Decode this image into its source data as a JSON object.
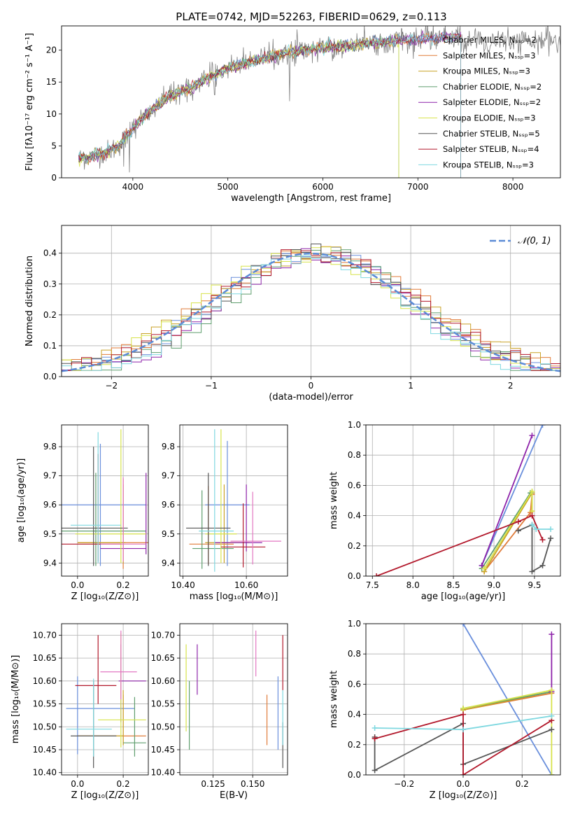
{
  "figure": {
    "title": "PLATE=0742, MJD=52263, FIBERID=0629, z=0.113"
  },
  "chart_data": [
    {
      "id": "spectrum",
      "type": "line",
      "xlabel": "wavelength [Angstrom, rest frame]",
      "ylabel": "Flux [fλ10⁻¹⁷ erg cm⁻² s⁻¹ A⁻¹]",
      "xlim": [
        3250,
        8500
      ],
      "ylim": [
        0,
        23.8
      ],
      "xticks": [
        4000,
        5000,
        6000,
        7000,
        8000
      ],
      "yticks": [
        0,
        5,
        10,
        15,
        20
      ],
      "grid": false,
      "legend_position": "right",
      "legend": [
        {
          "label": "Chabrier MILES, Nₛₛₚ=2",
          "color": "#6a8fdc"
        },
        {
          "label": "Salpeter MILES, Nₛₛₚ=3",
          "color": "#e07b39"
        },
        {
          "label": "Kroupa MILES, Nₛₛₚ=3",
          "color": "#c9a227"
        },
        {
          "label": "Chabrier ELODIE, Nₛₛₚ=2",
          "color": "#5f9e6e"
        },
        {
          "label": "Salpeter ELODIE, Nₛₛₚ=2",
          "color": "#8e24aa"
        },
        {
          "label": "Kroupa ELODIE, Nₛₛₚ=3",
          "color": "#d7e34b"
        },
        {
          "label": "Chabrier STELIB, Nₛₛₚ=5",
          "color": "#555555"
        },
        {
          "label": "Salpeter STELIB, Nₛₛₚ=4",
          "color": "#b2182b"
        },
        {
          "label": "Kroupa STELIB, Nₛₛₚ=3",
          "color": "#7fd8e0"
        }
      ],
      "continuum": [
        [
          3430,
          3.0
        ],
        [
          3550,
          3.3
        ],
        [
          3650,
          3.8
        ],
        [
          3750,
          4.2
        ],
        [
          3850,
          5.0
        ],
        [
          3950,
          6.8
        ],
        [
          4050,
          8.5
        ],
        [
          4150,
          10.0
        ],
        [
          4250,
          11.3
        ],
        [
          4400,
          12.8
        ],
        [
          4600,
          14.0
        ],
        [
          4800,
          15.8
        ],
        [
          5000,
          17.2
        ],
        [
          5200,
          18.0
        ],
        [
          5400,
          18.8
        ],
        [
          5600,
          19.5
        ],
        [
          5800,
          20.0
        ],
        [
          6000,
          20.3
        ],
        [
          6200,
          20.6
        ],
        [
          6400,
          20.9
        ],
        [
          6600,
          21.2
        ],
        [
          6800,
          21.5
        ],
        [
          7000,
          21.7
        ],
        [
          7200,
          21.8
        ],
        [
          7450,
          22.2
        ]
      ],
      "series_ends": [
        7450,
        7450,
        6800,
        6800,
        7450,
        6800,
        7450,
        7450,
        7450
      ]
    },
    {
      "id": "residual-histogram",
      "type": "line",
      "xlabel": "(data-model)/error",
      "ylabel": "Normed distribution",
      "xlim": [
        -2.5,
        2.5
      ],
      "ylim": [
        0,
        0.49
      ],
      "xticks": [
        -2,
        -1,
        0,
        1,
        2
      ],
      "yticks": [
        0.0,
        0.1,
        0.2,
        0.3,
        0.4
      ],
      "grid": true,
      "legend_position": "upper right",
      "legend_label": "𝒩(0, 1)",
      "gaussian_color": "#5b8bd6"
    },
    {
      "id": "age-vs-Z",
      "type": "scatter",
      "xlabel": "Z [log₁₀(Z/Z⊙)]",
      "ylabel": "age  [log₁₀(age/yr)]",
      "xlim": [
        -0.07,
        0.31
      ],
      "ylim": [
        9.355,
        9.875
      ],
      "xticks": [
        0.0,
        0.2
      ],
      "yticks": [
        9.4,
        9.5,
        9.6,
        9.7,
        9.8
      ],
      "grid": true,
      "points": [
        {
          "x": 0.1,
          "y": 9.6,
          "xerr": [
            0.2,
            0.2
          ],
          "yerr": [
            0.21,
            0.21
          ],
          "color": "#6a8fdc"
        },
        {
          "x": 0.2,
          "y": 9.47,
          "xerr": [
            0.2,
            0.2
          ],
          "yerr": [
            0.09,
            0.22
          ],
          "color": "#e07b39"
        },
        {
          "x": 0.2,
          "y": 9.47,
          "xerr": [
            0.2,
            0.01
          ],
          "yerr": [
            0.07,
            0.2
          ],
          "color": "#c9a227"
        },
        {
          "x": 0.08,
          "y": 9.51,
          "xerr": [
            0.18,
            0.22
          ],
          "yerr": [
            0.12,
            0.2
          ],
          "color": "#5f9e6e"
        },
        {
          "x": 0.3,
          "y": 9.45,
          "xerr": [
            0.2,
            0.0
          ],
          "yerr": [
            0.02,
            0.26
          ],
          "color": "#8e24aa"
        },
        {
          "x": 0.19,
          "y": 9.5,
          "xerr": [
            0.2,
            0.11
          ],
          "yerr": [
            0.1,
            0.36
          ],
          "color": "#d7e34b"
        },
        {
          "x": 0.07,
          "y": 9.52,
          "xerr": [
            0.2,
            0.15
          ],
          "yerr": [
            0.13,
            0.28
          ],
          "color": "#555555"
        },
        {
          "x": 0.09,
          "y": 9.465,
          "xerr": [
            0.2,
            0.1
          ],
          "yerr": [
            0.06,
            0.31
          ],
          "color": "#b2182b"
        },
        {
          "x": 0.09,
          "y": 9.53,
          "xerr": [
            0.12,
            0.1
          ],
          "yerr": [
            0.13,
            0.32
          ],
          "color": "#7fd8e0"
        },
        {
          "x": 0.2,
          "y": 9.465,
          "xerr": [
            0.1,
            0.1
          ],
          "yerr": [
            0.06,
            0.23
          ],
          "color": "#e377c2"
        }
      ]
    },
    {
      "id": "age-vs-mass",
      "type": "scatter",
      "xlabel": "mass [log₁₀(M/M⊙)]",
      "xlim": [
        10.39,
        10.73
      ],
      "ylim": [
        9.355,
        9.875
      ],
      "xticks": [
        10.4,
        10.6
      ],
      "yticks": [
        9.4,
        9.5,
        9.6,
        9.7,
        9.8
      ],
      "grid": true,
      "points": [
        {
          "x": 10.54,
          "y": 9.6,
          "xerr": [
            0.07,
            0.07
          ],
          "yerr": [
            0.21,
            0.22
          ],
          "color": "#6a8fdc"
        },
        {
          "x": 10.48,
          "y": 9.465,
          "xerr": [
            0.06,
            0.08
          ],
          "yerr": [
            0.07,
            0.2
          ],
          "color": "#e07b39"
        },
        {
          "x": 10.53,
          "y": 9.47,
          "xerr": [
            0.06,
            0.08
          ],
          "yerr": [
            0.07,
            0.2
          ],
          "color": "#c9a227"
        },
        {
          "x": 10.46,
          "y": 9.45,
          "xerr": [
            0.03,
            0.1
          ],
          "yerr": [
            0.07,
            0.2
          ],
          "color": "#5f9e6e"
        },
        {
          "x": 10.6,
          "y": 9.47,
          "xerr": [
            0.1,
            0.05
          ],
          "yerr": [
            0.03,
            0.2
          ],
          "color": "#8e24aa"
        },
        {
          "x": 10.52,
          "y": 9.5,
          "xerr": [
            0.05,
            0.05
          ],
          "yerr": [
            0.1,
            0.36
          ],
          "color": "#d7e34b"
        },
        {
          "x": 10.48,
          "y": 9.52,
          "xerr": [
            0.07,
            0.07
          ],
          "yerr": [
            0.13,
            0.19
          ],
          "color": "#555555"
        },
        {
          "x": 10.59,
          "y": 9.455,
          "xerr": [
            0.07,
            0.07
          ],
          "yerr": [
            0.07,
            0.15
          ],
          "color": "#b2182b"
        },
        {
          "x": 10.5,
          "y": 9.51,
          "xerr": [
            0.05,
            0.06
          ],
          "yerr": [
            0.14,
            0.35
          ],
          "color": "#7fd8e0"
        },
        {
          "x": 10.62,
          "y": 9.475,
          "xerr": [
            0.07,
            0.09
          ],
          "yerr": [
            0.08,
            0.17
          ],
          "color": "#e377c2"
        }
      ]
    },
    {
      "id": "weight-vs-age",
      "type": "line",
      "xlabel": "age  [log₁₀(age/yr)]",
      "ylabel": "mass weight",
      "xlim": [
        7.42,
        9.82
      ],
      "ylim": [
        0,
        1.0
      ],
      "xticks": [
        7.5,
        8.0,
        8.5,
        9.0,
        9.5
      ],
      "yticks": [
        0.0,
        0.2,
        0.4,
        0.6,
        0.8,
        1.0
      ],
      "grid": true,
      "series": [
        {
          "color": "#6a8fdc",
          "points": [
            [
              8.85,
              0.07
            ],
            [
              9.6,
              1.0
            ]
          ]
        },
        {
          "color": "#e07b39",
          "points": [
            [
              8.88,
              0.03
            ],
            [
              9.45,
              0.42
            ],
            [
              9.47,
              0.54
            ]
          ]
        },
        {
          "color": "#c9a227",
          "points": [
            [
              8.88,
              0.03
            ],
            [
              9.47,
              0.55
            ],
            [
              9.47,
              0.43
            ]
          ]
        },
        {
          "color": "#5f9e6e",
          "points": [
            [
              8.85,
              0.05
            ],
            [
              9.45,
              0.55
            ]
          ]
        },
        {
          "color": "#8e24aa",
          "points": [
            [
              8.85,
              0.07
            ],
            [
              9.47,
              0.93
            ]
          ]
        },
        {
          "color": "#d7e34b",
          "points": [
            [
              8.88,
              0.05
            ],
            [
              9.47,
              0.56
            ],
            [
              9.47,
              0.43
            ]
          ]
        },
        {
          "color": "#555555",
          "points": [
            [
              9.3,
              0.3
            ],
            [
              9.47,
              0.34
            ],
            [
              9.47,
              0.03
            ],
            [
              9.6,
              0.07
            ],
            [
              9.7,
              0.25
            ]
          ]
        },
        {
          "color": "#b2182b",
          "points": [
            [
              7.55,
              0.0
            ],
            [
              9.3,
              0.36
            ],
            [
              9.47,
              0.4
            ],
            [
              9.6,
              0.24
            ]
          ]
        },
        {
          "color": "#7fd8e0",
          "points": [
            [
              9.47,
              0.34
            ],
            [
              9.52,
              0.31
            ],
            [
              9.7,
              0.31
            ]
          ]
        }
      ]
    },
    {
      "id": "mass-vs-Z",
      "type": "scatter",
      "xlabel": "Z [log₁₀(Z/Z⊙)]",
      "ylabel": "mass [log₁₀(M/M⊙)]",
      "xlim": [
        -0.07,
        0.31
      ],
      "ylim": [
        10.395,
        10.725
      ],
      "xticks": [
        0.0,
        0.2
      ],
      "yticks": [
        10.4,
        10.45,
        10.5,
        10.55,
        10.6,
        10.65,
        10.7
      ],
      "grid": true,
      "points": [
        {
          "x": 0.0,
          "y": 10.54,
          "xerr": [
            0.05,
            0.25
          ],
          "yerr": [
            0.1,
            0.07
          ],
          "color": "#6a8fdc"
        },
        {
          "x": 0.2,
          "y": 10.48,
          "xerr": [
            0.2,
            0.1
          ],
          "yerr": [
            0.02,
            0.09
          ],
          "color": "#e07b39"
        },
        {
          "x": 0.2,
          "y": 10.48,
          "xerr": [
            0.2,
            0.0
          ],
          "yerr": [
            0.02,
            0.1
          ],
          "color": "#c9a227"
        },
        {
          "x": 0.25,
          "y": 10.465,
          "xerr": [
            0.05,
            0.05
          ],
          "yerr": [
            0.03,
            0.1
          ],
          "color": "#5f9e6e"
        },
        {
          "x": 0.19,
          "y": 10.6,
          "xerr": [
            0.01,
            0.11
          ],
          "yerr": [
            0.09,
            0.08
          ],
          "color": "#8e24aa"
        },
        {
          "x": 0.19,
          "y": 10.515,
          "xerr": [
            0.1,
            0.11
          ],
          "yerr": [
            0.06,
            0.19
          ],
          "color": "#d7e34b"
        },
        {
          "x": 0.07,
          "y": 10.48,
          "xerr": [
            0.1,
            0.1
          ],
          "yerr": [
            0.07,
            0.12
          ],
          "color": "#555555"
        },
        {
          "x": 0.09,
          "y": 10.59,
          "xerr": [
            0.1,
            0.08
          ],
          "yerr": [
            0.04,
            0.11
          ],
          "color": "#b2182b"
        },
        {
          "x": 0.07,
          "y": 10.495,
          "xerr": [
            0.12,
            0.08
          ],
          "yerr": [
            0.06,
            0.11
          ],
          "color": "#7fd8e0"
        },
        {
          "x": 0.19,
          "y": 10.62,
          "xerr": [
            0.09,
            0.07
          ],
          "yerr": [
            0.06,
            0.09
          ],
          "color": "#e377c2"
        }
      ]
    },
    {
      "id": "mass-vs-EBV",
      "type": "scatter",
      "xlabel": "E(B-V)",
      "xlim": [
        0.104,
        0.172
      ],
      "ylim": [
        10.395,
        10.725
      ],
      "xticks": [
        0.125,
        0.15
      ],
      "yticks": [
        10.4,
        10.45,
        10.5,
        10.55,
        10.6,
        10.65,
        10.7
      ],
      "grid": true,
      "points": [
        {
          "x": 0.166,
          "y": 10.53,
          "yerr": [
            0.08,
            0.08
          ],
          "color": "#6a8fdc"
        },
        {
          "x": 0.159,
          "y": 10.52,
          "yerr": [
            0.06,
            0.05
          ],
          "color": "#e07b39"
        },
        {
          "x": 0.11,
          "y": 10.55,
          "yerr": [
            0.1,
            0.05
          ],
          "color": "#5f9e6e"
        },
        {
          "x": 0.115,
          "y": 10.61,
          "yerr": [
            0.04,
            0.07
          ],
          "color": "#8e24aa"
        },
        {
          "x": 0.108,
          "y": 10.59,
          "yerr": [
            0.1,
            0.09
          ],
          "color": "#d7e34b"
        },
        {
          "x": 0.169,
          "y": 10.47,
          "yerr": [
            0.06,
            0.04
          ],
          "color": "#555555"
        },
        {
          "x": 0.169,
          "y": 10.65,
          "yerr": [
            0.07,
            0.05
          ],
          "color": "#b2182b"
        },
        {
          "x": 0.169,
          "y": 10.52,
          "yerr": [
            0.06,
            0.06
          ],
          "color": "#7fd8e0"
        },
        {
          "x": 0.152,
          "y": 10.66,
          "yerr": [
            0.05,
            0.05
          ],
          "color": "#e377c2"
        }
      ]
    },
    {
      "id": "weight-vs-Z",
      "type": "line",
      "xlabel": "Z [log₁₀(Z/Z⊙)]",
      "ylabel": "mass weight",
      "xlim": [
        -0.33,
        0.33
      ],
      "ylim": [
        0,
        1.0
      ],
      "xticks": [
        -0.2,
        0.0,
        0.2
      ],
      "yticks": [
        0.0,
        0.2,
        0.4,
        0.6,
        0.8,
        1.0
      ],
      "grid": true,
      "series": [
        {
          "color": "#6a8fdc",
          "points": [
            [
              0.0,
              1.0
            ],
            [
              0.3,
              0.0
            ]
          ]
        },
        {
          "color": "#e07b39",
          "points": [
            [
              0.0,
              0.43
            ],
            [
              0.3,
              0.54
            ]
          ]
        },
        {
          "color": "#c9a227",
          "points": [
            [
              0.0,
              0.43
            ],
            [
              0.3,
              0.55
            ]
          ]
        },
        {
          "color": "#5f9e6e",
          "points": [
            [
              0.0,
              0.44
            ],
            [
              0.3,
              0.55
            ]
          ]
        },
        {
          "color": "#8e24aa",
          "points": [
            [
              0.3,
              0.93
            ],
            [
              0.3,
              0.55
            ]
          ]
        },
        {
          "color": "#d7e34b",
          "points": [
            [
              0.0,
              0.44
            ],
            [
              0.3,
              0.56
            ],
            [
              0.3,
              0.0
            ]
          ]
        },
        {
          "color": "#555555",
          "points": [
            [
              -0.3,
              0.25
            ],
            [
              -0.3,
              0.03
            ],
            [
              0.0,
              0.34
            ],
            [
              0.0,
              0.07
            ],
            [
              0.3,
              0.3
            ]
          ]
        },
        {
          "color": "#b2182b",
          "points": [
            [
              -0.3,
              0.24
            ],
            [
              0.0,
              0.4
            ],
            [
              0.0,
              0.0
            ],
            [
              0.3,
              0.36
            ]
          ]
        },
        {
          "color": "#7fd8e0",
          "points": [
            [
              -0.3,
              0.31
            ],
            [
              0.0,
              0.3
            ],
            [
              0.3,
              0.39
            ]
          ]
        }
      ]
    }
  ]
}
